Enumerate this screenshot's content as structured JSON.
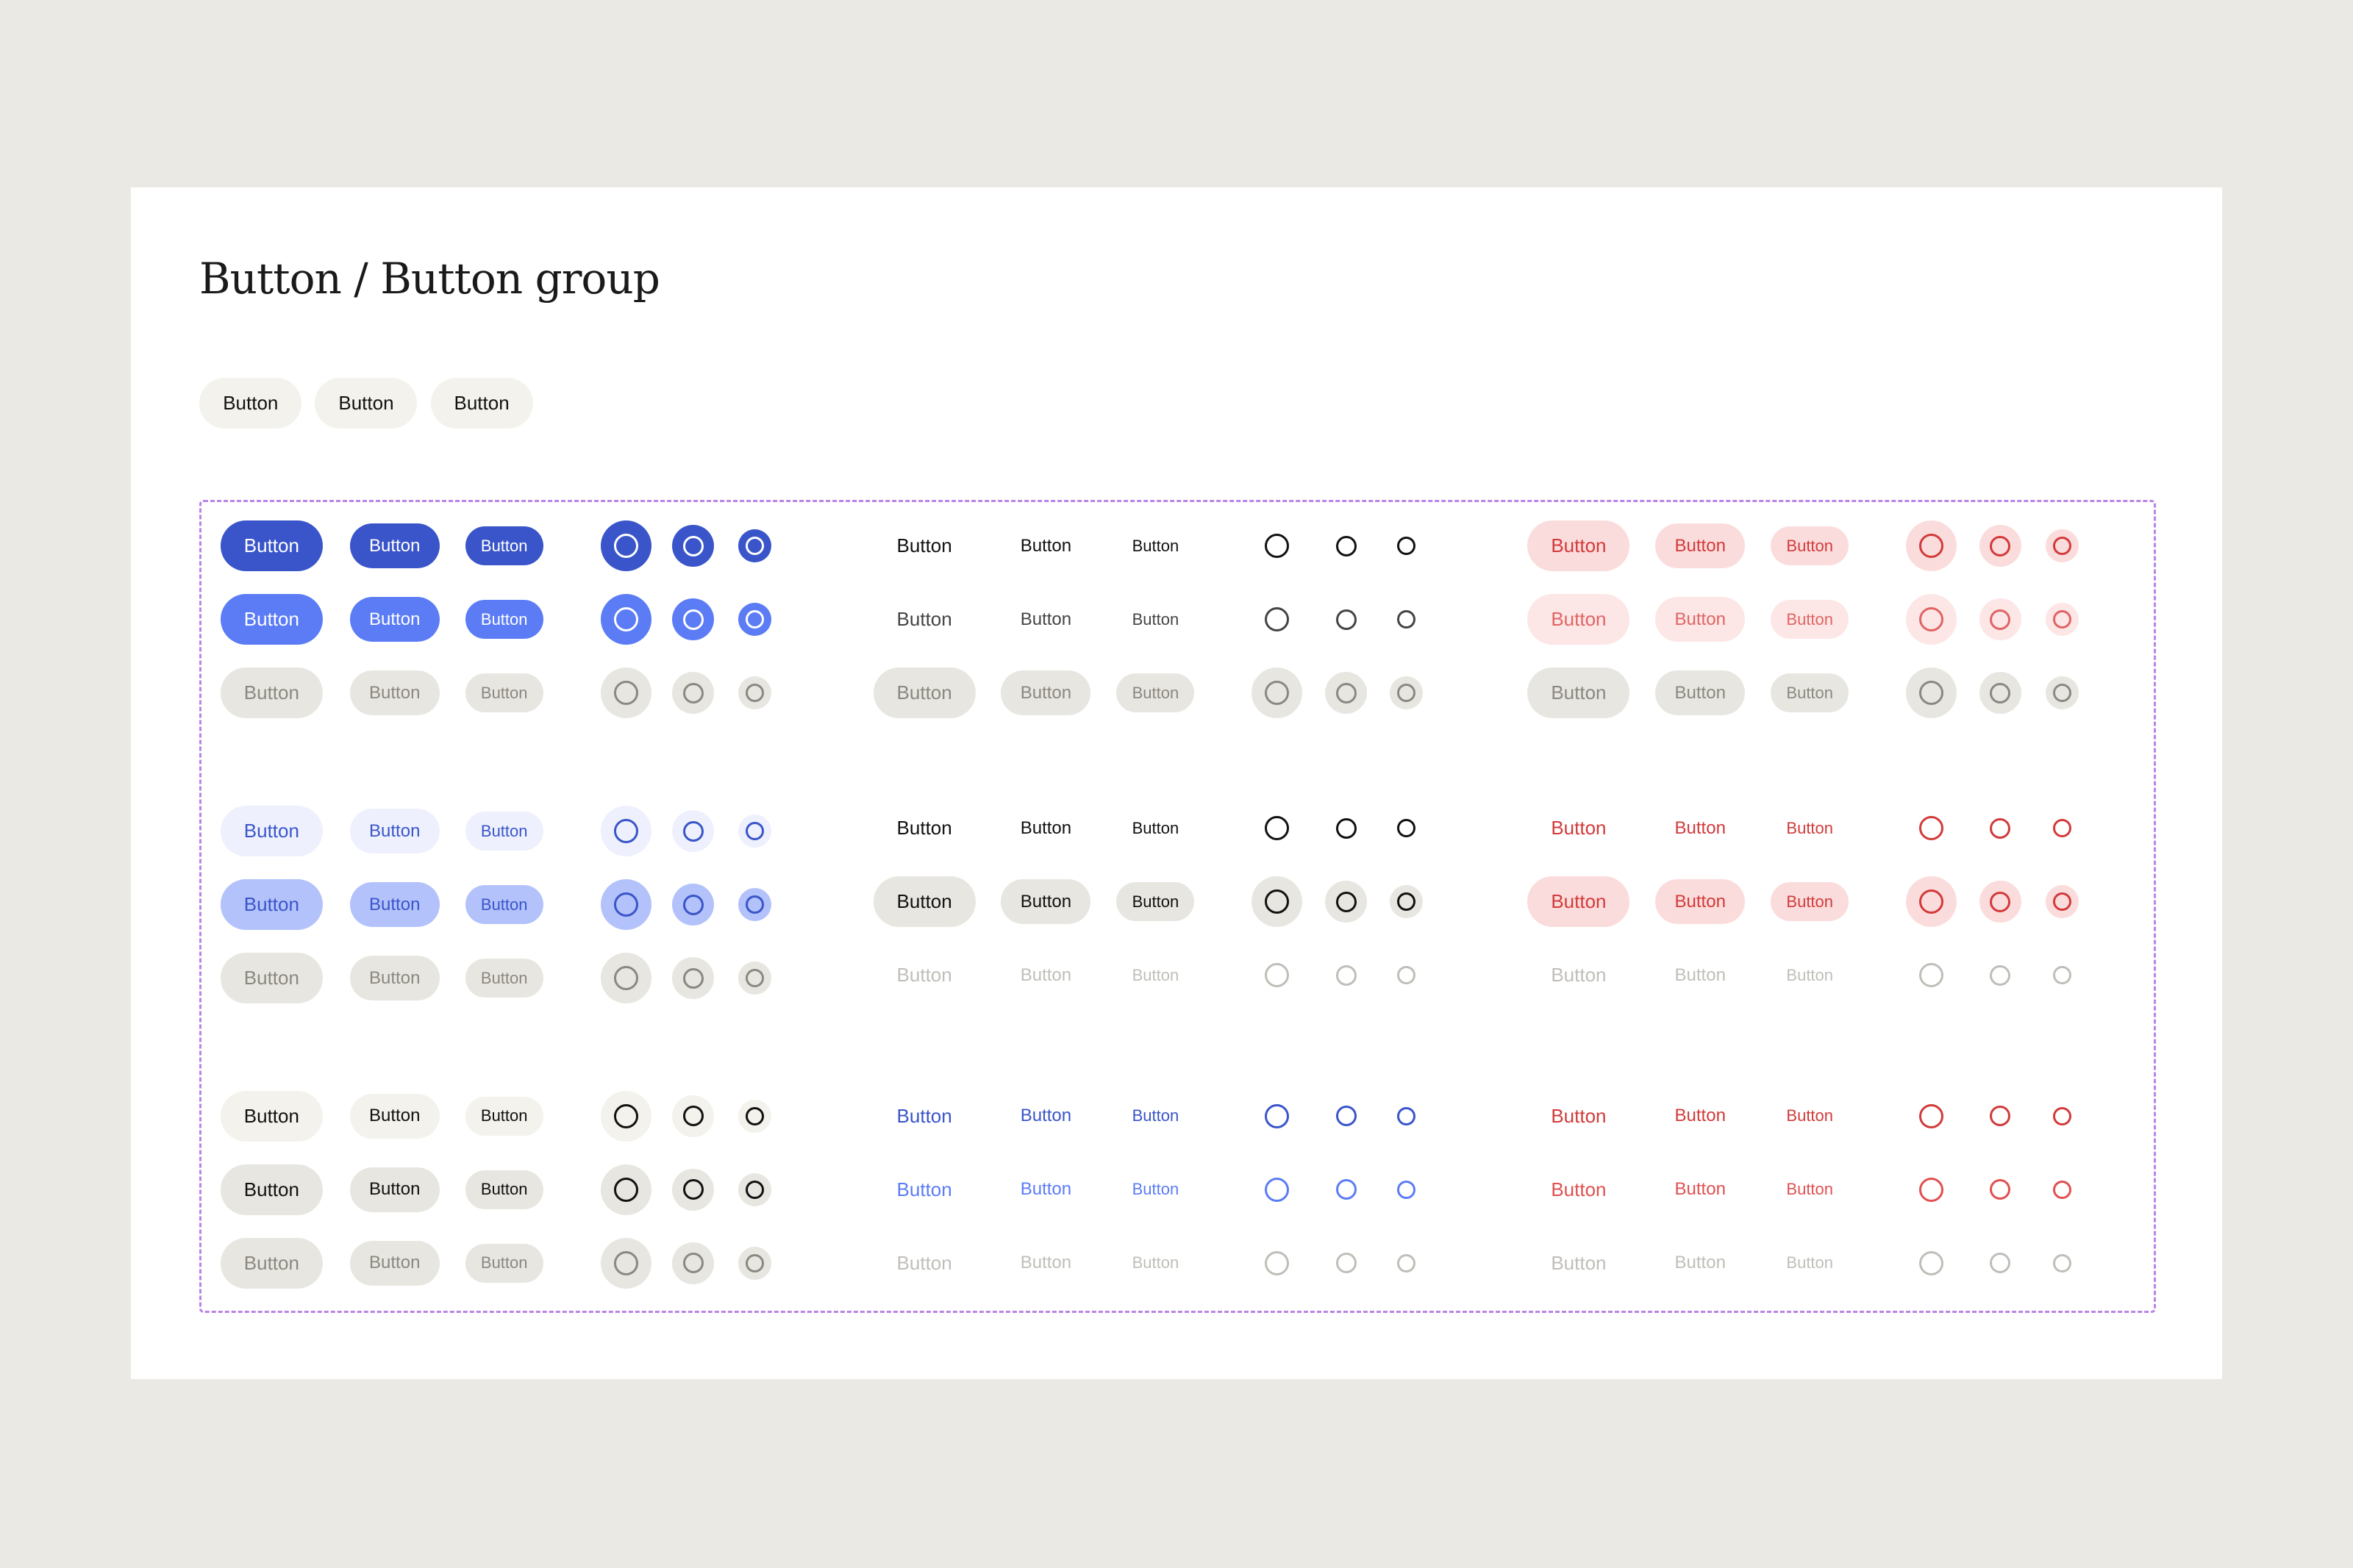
{
  "header": {
    "title": "Button / Button group"
  },
  "button_group": {
    "buttons": [
      "Button",
      "Button",
      "Button"
    ]
  },
  "matrix": {
    "rows": [
      [
        "Button",
        "Button",
        "Button",
        "Button",
        "Button",
        "Button",
        "Button",
        "Button",
        "Button"
      ],
      [
        "Button",
        "Button",
        "Button",
        "Button",
        "Button",
        "Button",
        "Button",
        "Button",
        "Button"
      ],
      [
        "Button",
        "Button",
        "Button",
        "Button",
        "Button",
        "Button",
        "Button",
        "Button",
        "Button"
      ],
      [
        "Button",
        "Button",
        "Button",
        "Button",
        "Button",
        "Button",
        "Button",
        "Button",
        "Button"
      ],
      [
        "Button",
        "Button",
        "Button",
        "Button",
        "Button",
        "Button",
        "Button",
        "Button",
        "Button"
      ],
      [
        "Button",
        "Button",
        "Button",
        "Button",
        "Button",
        "Button",
        "Button",
        "Button",
        "Button"
      ],
      [
        "Button",
        "Button",
        "Button",
        "Button",
        "Button",
        "Button",
        "Button",
        "Button",
        "Button"
      ],
      [
        "Button",
        "Button",
        "Button",
        "Button",
        "Button",
        "Button",
        "Button",
        "Button",
        "Button"
      ],
      [
        "Button",
        "Button",
        "Button",
        "Button",
        "Button",
        "Button",
        "Button",
        "Button",
        "Button"
      ]
    ]
  }
}
